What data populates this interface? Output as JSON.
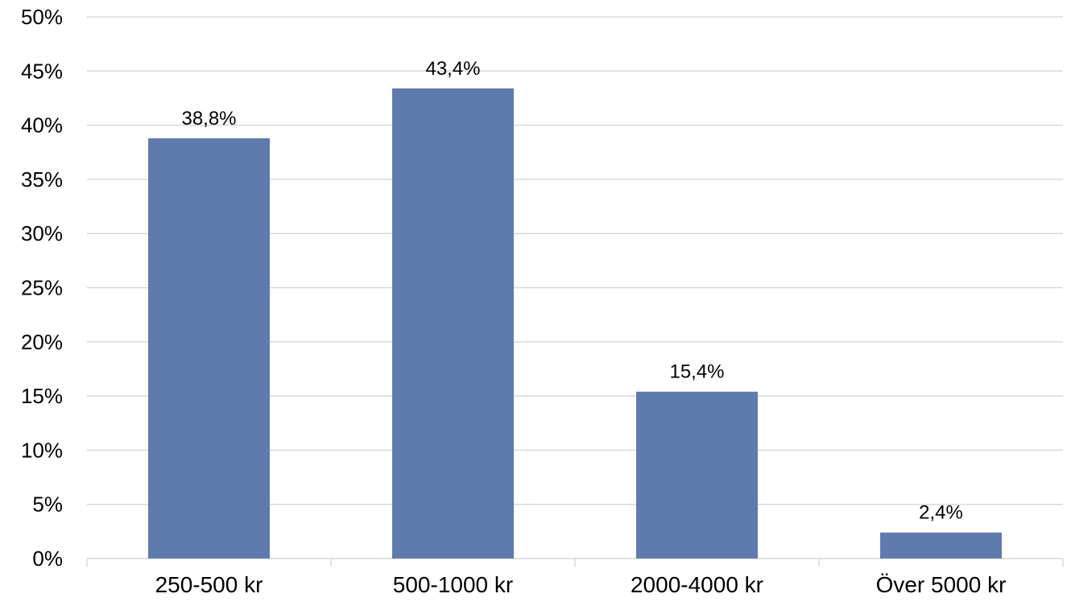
{
  "chart_data": {
    "type": "bar",
    "categories": [
      "250-500 kr",
      "500-1000 kr",
      "2000-4000 kr",
      "Över 5000 kr"
    ],
    "values": [
      38.8,
      43.4,
      15.4,
      2.4
    ],
    "data_labels": [
      "38,8%",
      "43,4%",
      "15,4%",
      "2,4%"
    ],
    "ylim": [
      0,
      50
    ],
    "y_ticks": [
      0,
      5,
      10,
      15,
      20,
      25,
      30,
      35,
      40,
      45,
      50
    ],
    "y_tick_labels": [
      "0%",
      "5%",
      "10%",
      "15%",
      "20%",
      "25%",
      "30%",
      "35%",
      "40%",
      "45%",
      "50%"
    ],
    "grid": true,
    "legend": "none",
    "colors": {
      "bar": "#5f7aad",
      "grid": "#d9d9d9",
      "axis": "#d9d9d9",
      "text": "#000000"
    }
  }
}
